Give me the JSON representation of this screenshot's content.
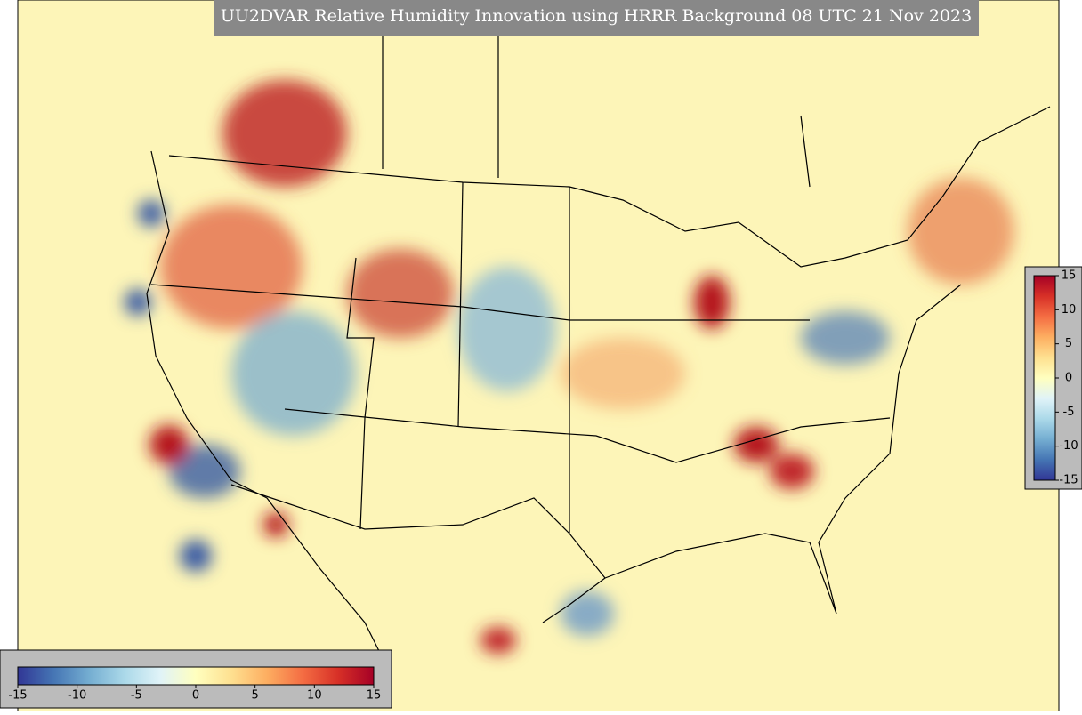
{
  "title": "UU2DVAR Relative Humidity Innovation using HRRR Background 08 UTC 21 Nov 2023",
  "colorbar": {
    "range": [
      -15,
      15
    ],
    "ticks": [
      -15,
      -10,
      -5,
      0,
      5,
      10,
      15
    ],
    "colors": [
      "#313695",
      "#4575b4",
      "#74add1",
      "#abd9e9",
      "#e0f3f8",
      "#ffffbf",
      "#fee090",
      "#fdae61",
      "#f46d43",
      "#d73027",
      "#a50026"
    ]
  }
}
